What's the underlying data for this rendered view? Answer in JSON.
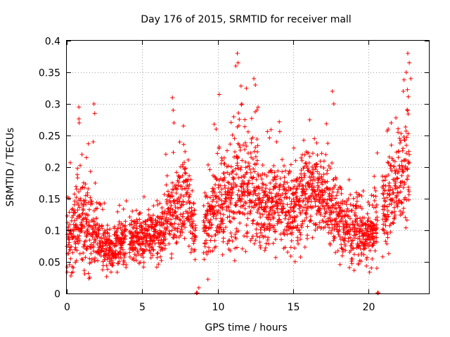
{
  "chart_data": {
    "type": "scatter",
    "title": "Day 176 of 2015, SRMTID for receiver mall",
    "xlabel": "GPS time / hours",
    "ylabel": "SRMTID / TECUs",
    "xlim": [
      0,
      24
    ],
    "ylim": [
      0,
      0.4
    ],
    "x_ticks": [
      0,
      5,
      10,
      15,
      20
    ],
    "x_tick_labels": [
      "0",
      "5",
      "10",
      "15",
      "20"
    ],
    "y_ticks": [
      0,
      0.05,
      0.1,
      0.15,
      0.2,
      0.25,
      0.3,
      0.35,
      0.4
    ],
    "y_tick_labels": [
      "0",
      "0.05",
      "0.1",
      "0.15",
      "0.2",
      "0.25",
      "0.3",
      "0.35",
      "0.4"
    ],
    "grid": true,
    "marker": "plus",
    "color": "#ff0000",
    "trend": [
      {
        "x": 0.0,
        "y": 0.075,
        "spread": 0.03
      },
      {
        "x": 0.3,
        "y": 0.09,
        "spread": 0.035
      },
      {
        "x": 0.8,
        "y": 0.12,
        "spread": 0.05
      },
      {
        "x": 1.5,
        "y": 0.1,
        "spread": 0.04
      },
      {
        "x": 2.0,
        "y": 0.085,
        "spread": 0.03
      },
      {
        "x": 2.5,
        "y": 0.075,
        "spread": 0.025
      },
      {
        "x": 3.0,
        "y": 0.06,
        "spread": 0.02
      },
      {
        "x": 3.5,
        "y": 0.08,
        "spread": 0.025
      },
      {
        "x": 4.5,
        "y": 0.09,
        "spread": 0.025
      },
      {
        "x": 5.5,
        "y": 0.09,
        "spread": 0.025
      },
      {
        "x": 6.5,
        "y": 0.1,
        "spread": 0.03
      },
      {
        "x": 7.0,
        "y": 0.13,
        "spread": 0.04
      },
      {
        "x": 7.8,
        "y": 0.15,
        "spread": 0.04
      },
      {
        "x": 8.6,
        "y": 0.1,
        "spread": 0.03
      },
      {
        "x": 9.3,
        "y": 0.11,
        "spread": 0.035
      },
      {
        "x": 10.0,
        "y": 0.15,
        "spread": 0.05
      },
      {
        "x": 10.8,
        "y": 0.14,
        "spread": 0.05
      },
      {
        "x": 11.5,
        "y": 0.17,
        "spread": 0.06
      },
      {
        "x": 12.3,
        "y": 0.18,
        "spread": 0.06
      },
      {
        "x": 13.0,
        "y": 0.13,
        "spread": 0.04
      },
      {
        "x": 14.0,
        "y": 0.14,
        "spread": 0.04
      },
      {
        "x": 15.0,
        "y": 0.13,
        "spread": 0.04
      },
      {
        "x": 15.8,
        "y": 0.16,
        "spread": 0.045
      },
      {
        "x": 16.8,
        "y": 0.16,
        "spread": 0.04
      },
      {
        "x": 17.6,
        "y": 0.13,
        "spread": 0.035
      },
      {
        "x": 18.5,
        "y": 0.11,
        "spread": 0.035
      },
      {
        "x": 19.2,
        "y": 0.1,
        "spread": 0.03
      },
      {
        "x": 20.0,
        "y": 0.09,
        "spread": 0.025
      },
      {
        "x": 21.0,
        "y": 0.13,
        "spread": 0.04
      },
      {
        "x": 22.0,
        "y": 0.18,
        "spread": 0.05
      },
      {
        "x": 22.7,
        "y": 0.2,
        "spread": 0.06
      }
    ],
    "gaps": [
      [
        3.95,
        4.15
      ],
      [
        8.55,
        9.05
      ],
      [
        20.6,
        20.9
      ]
    ],
    "outliers": [
      {
        "x": 0.8,
        "y": 0.295
      },
      {
        "x": 0.82,
        "y": 0.27
      },
      {
        "x": 1.3,
        "y": 0.215
      },
      {
        "x": 1.8,
        "y": 0.3
      },
      {
        "x": 1.85,
        "y": 0.285
      },
      {
        "x": 1.75,
        "y": 0.24
      },
      {
        "x": 7.0,
        "y": 0.31
      },
      {
        "x": 7.05,
        "y": 0.29
      },
      {
        "x": 7.1,
        "y": 0.27
      },
      {
        "x": 9.9,
        "y": 0.26
      },
      {
        "x": 10.1,
        "y": 0.315
      },
      {
        "x": 11.2,
        "y": 0.36
      },
      {
        "x": 11.3,
        "y": 0.38
      },
      {
        "x": 11.35,
        "y": 0.365
      },
      {
        "x": 11.6,
        "y": 0.3
      },
      {
        "x": 11.8,
        "y": 0.275
      },
      {
        "x": 12.4,
        "y": 0.34
      },
      {
        "x": 12.5,
        "y": 0.33
      },
      {
        "x": 12.6,
        "y": 0.29
      },
      {
        "x": 13.9,
        "y": 0.24
      },
      {
        "x": 17.6,
        "y": 0.32
      },
      {
        "x": 17.7,
        "y": 0.3
      },
      {
        "x": 21.3,
        "y": 0.26
      },
      {
        "x": 21.5,
        "y": 0.27
      },
      {
        "x": 22.3,
        "y": 0.32
      },
      {
        "x": 22.5,
        "y": 0.35
      },
      {
        "x": 22.6,
        "y": 0.38
      },
      {
        "x": 22.7,
        "y": 0.365
      },
      {
        "x": 22.8,
        "y": 0.34
      }
    ],
    "zero_points": [
      8.6,
      20.6
    ]
  }
}
